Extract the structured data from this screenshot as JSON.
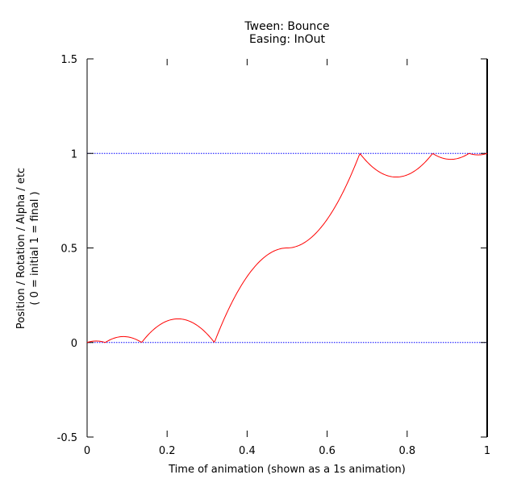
{
  "chart_data": {
    "type": "line",
    "title": [
      "Tween: Bounce",
      "Easing: InOut"
    ],
    "xlabel": "Time of animation (shown as a 1s animation)",
    "ylabel": [
      "Position / Rotation / Alpha / etc",
      "( 0 = initial   1 = final )"
    ],
    "xlim": [
      0,
      1
    ],
    "ylim": [
      -0.5,
      1.5
    ],
    "xticks": [
      0,
      0.2,
      0.4,
      0.6,
      0.8,
      1
    ],
    "xtick_labels": [
      "0",
      "0.2",
      "0.4",
      "0.6",
      "0.8",
      "1"
    ],
    "yticks": [
      -0.5,
      0,
      0.5,
      1,
      1.5
    ],
    "ytick_labels": [
      "-0.5",
      "0",
      "0.5",
      "1",
      "1.5"
    ],
    "reference_lines": [
      0,
      1
    ],
    "colors": {
      "curve": "#ff0000",
      "reference": "#0000ff",
      "axis": "#000000"
    },
    "series": [
      {
        "easing": "bounce-inout",
        "x_start": 0,
        "x_end": 1,
        "samples": 400
      }
    ]
  }
}
